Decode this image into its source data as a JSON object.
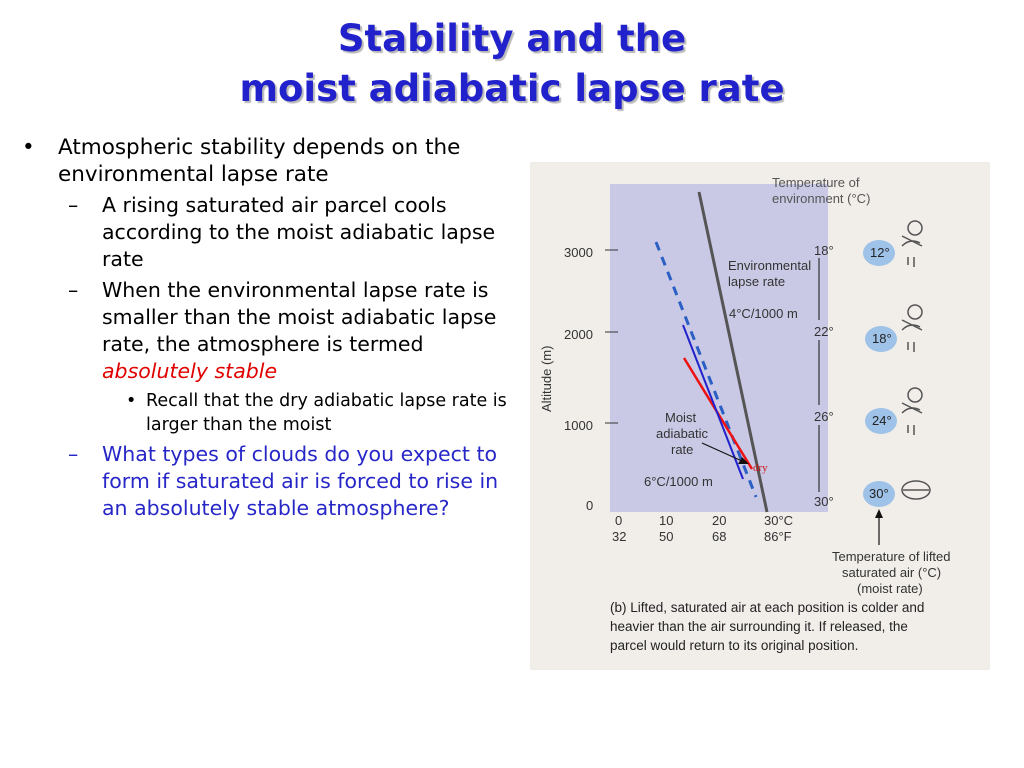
{
  "title": {
    "line1": "Stability and the",
    "line2": "moist adiabatic lapse rate"
  },
  "bullets": {
    "b1": "Atmospheric stability depends on the environmental lapse rate",
    "b2a": "A rising saturated air parcel cools according to the moist adiabatic lapse rate",
    "b2b_pre": "When the environmental lapse rate is smaller than the moist adiabatic lapse rate, the atmosphere is termed ",
    "b2b_em": "absolutely stable",
    "b3": "Recall that the dry adiabatic lapse rate is larger than the moist",
    "b2c": "What types of clouds do you expect to form if saturated air is forced to rise in an absolutely stable atmosphere?"
  },
  "figure": {
    "top_label1": "Temperature of",
    "top_label2": "environment (°C)",
    "y_axis_label": "Altitude (m)",
    "y_ticks": [
      "3000",
      "2000",
      "1000",
      "0"
    ],
    "x_ticks_c": [
      "0",
      "10",
      "20",
      "30°C"
    ],
    "x_ticks_f": [
      "32",
      "50",
      "68",
      "86°F"
    ],
    "env_label1": "Environmental",
    "env_label2": "lapse rate",
    "env_rate": "4°C/1000 m",
    "env_temps": [
      "18°",
      "22°",
      "26°",
      "30°"
    ],
    "moist_label1": "Moist",
    "moist_label2": "adiabatic",
    "moist_label3": "rate",
    "moist_rate": "6°C/1000 m",
    "parcel_temps": [
      "12°",
      "18°",
      "24°",
      "30°"
    ],
    "dry_label": "dry",
    "bottom_label1": "Temperature of lifted",
    "bottom_label2": "saturated air (°C)",
    "bottom_label3": "(moist rate)",
    "caption1": "(b)  Lifted, saturated air at each position is colder and",
    "caption2": "heavier than the air surrounding it. If released, the",
    "caption3": "parcel would return to its original position.",
    "colors": {
      "paper": "#f1eeea",
      "panel": "#c9c9e6",
      "blob": "#9fc2e8",
      "moist_line": "#2b5fc4",
      "env_line": "#555555",
      "red_line": "#ee1111",
      "blue_line": "#2222cc"
    }
  }
}
